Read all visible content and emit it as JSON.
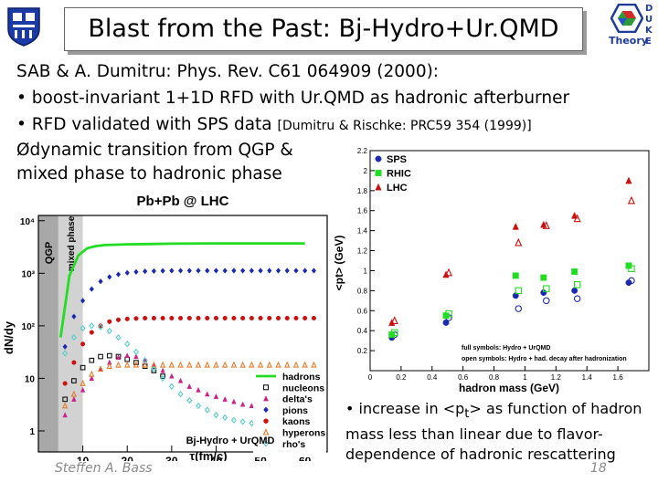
{
  "slide": {
    "title": "Blast from the Past: Bj-Hydro+Ur.QMD",
    "lines": [
      "SAB & A. Dumitru: Phys. Rev. C61 064909 (2000):",
      "• boost-invariant 1+1D RFD with Ur.QMD as hadronic afterburner",
      "• RFD validated with SPS data",
      "[Dumitru & Rischke: PRC59 354 (1999)]",
      "Ødynamic transition from QGP &",
      "mixed phase to hadronic phase"
    ],
    "logo_right": "Theory",
    "logo_letters": [
      "D",
      "U",
      "K",
      "E"
    ],
    "note": {
      "text_before": "• increase in <p",
      "text_sub": "t",
      "text_after": "> as function of hadron mass less than linear due to flavor-dependence of hadronic rescattering"
    },
    "author": "Steffen A. Bass",
    "page": "18"
  },
  "colors": {
    "hadrons": "#22dd22",
    "nucleons": "#111111",
    "deltas": "#cc2288",
    "pions": "#1a2ab0",
    "kaons": "#cc1111",
    "hyperons": "#e87a2a",
    "rhos": "#55cccc"
  },
  "chart_data": [
    {
      "type": "line",
      "title": "Pb+Pb @ LHC",
      "xlabel": "τ(fm/c)",
      "ylabel": "dN/dy",
      "xlim": [
        0,
        65
      ],
      "ylim_log10": [
        -0.4,
        4.1
      ],
      "x_ticks": [
        "10",
        "20",
        "30",
        "40",
        "50",
        "60"
      ],
      "y_ticks": [
        "1",
        "10",
        "10²",
        "10³",
        "10⁴"
      ],
      "phase_labels": [
        "QGP",
        "mixed phase"
      ],
      "phase_regions": [
        [
          0,
          4.5
        ],
        [
          4.5,
          10
        ]
      ],
      "legend_title": "Bj-Hydro + UrQMD",
      "series": [
        {
          "name": "hadrons",
          "style": "line",
          "x": [
            5,
            7,
            9,
            11,
            13,
            15,
            20,
            25,
            30,
            40,
            50,
            60
          ],
          "y": [
            60,
            900,
            2200,
            3000,
            3300,
            3450,
            3550,
            3600,
            3650,
            3700,
            3700,
            3700
          ]
        },
        {
          "name": "nucleons",
          "style": "square-open",
          "x": [
            6,
            8,
            10,
            12,
            14,
            16,
            18,
            20,
            22,
            24,
            26,
            28
          ],
          "y": [
            4,
            9,
            16,
            22,
            26,
            27,
            26,
            23,
            20,
            17,
            14,
            11
          ]
        },
        {
          "name": "delta's",
          "style": "triangle",
          "x": [
            6,
            8,
            10,
            12,
            14,
            16,
            18,
            20,
            22,
            24,
            26,
            28,
            30,
            32,
            34,
            36,
            38,
            40,
            42,
            44,
            46,
            48,
            50,
            52,
            54,
            56,
            58,
            60,
            62
          ],
          "y": [
            2,
            4,
            6,
            10,
            15,
            20,
            25,
            27,
            26,
            22,
            18,
            14,
            11,
            9,
            7,
            6,
            5,
            4.5,
            4,
            3.6,
            3.2,
            3,
            2.8,
            2.6,
            2.4,
            2.2,
            2.1,
            2.0,
            1.9
          ]
        },
        {
          "name": "pions",
          "style": "diamond",
          "x": [
            6,
            8,
            10,
            12,
            14,
            16,
            18,
            20,
            22,
            24,
            26,
            28,
            30,
            32,
            34,
            36,
            38,
            40,
            42,
            44,
            46,
            48,
            50,
            52,
            54,
            56,
            58,
            60,
            62
          ],
          "y": [
            40,
            150,
            300,
            500,
            700,
            850,
            950,
            1020,
            1060,
            1090,
            1100,
            1110,
            1120,
            1120,
            1120,
            1120,
            1120,
            1120,
            1120,
            1120,
            1120,
            1120,
            1120,
            1120,
            1120,
            1120,
            1120,
            1120,
            1120
          ]
        },
        {
          "name": "kaons",
          "style": "circle",
          "x": [
            6,
            8,
            10,
            12,
            14,
            16,
            18,
            20,
            22,
            24,
            26,
            28,
            30,
            32,
            34,
            36,
            38,
            40,
            42,
            44,
            46,
            48,
            50,
            52,
            54,
            56,
            58,
            60,
            62
          ],
          "y": [
            8,
            20,
            45,
            75,
            100,
            120,
            130,
            135,
            138,
            140,
            140,
            140,
            140,
            140,
            140,
            140,
            140,
            140,
            140,
            140,
            140,
            140,
            140,
            140,
            140,
            140,
            140,
            140,
            140
          ]
        },
        {
          "name": "hyperons",
          "style": "triangle-open",
          "x": [
            6,
            8,
            10,
            12,
            14,
            16,
            18,
            20,
            22,
            24,
            26,
            28,
            30,
            32,
            34,
            36,
            38,
            40,
            42,
            44,
            46,
            48,
            50,
            52,
            54,
            56,
            58,
            60,
            62
          ],
          "y": [
            3,
            5,
            8,
            12,
            15,
            17,
            18,
            18,
            18,
            18,
            18,
            18,
            18,
            18,
            18,
            18,
            18,
            18,
            18,
            18,
            18,
            18,
            18,
            18,
            18,
            18,
            18,
            18,
            18
          ]
        },
        {
          "name": "rho's",
          "style": "diamond-open",
          "x": [
            6,
            8,
            10,
            12,
            14,
            16,
            18,
            20,
            22,
            24,
            26,
            28,
            30,
            32,
            34,
            36,
            38,
            40,
            42,
            44,
            46,
            48,
            50,
            52,
            54,
            56,
            58,
            60,
            62
          ],
          "y": [
            30,
            60,
            90,
            100,
            95,
            80,
            60,
            45,
            32,
            22,
            15,
            10,
            7,
            5,
            3.8,
            3,
            2.5,
            2,
            1.8,
            1.6,
            1.5,
            1.4,
            1.3,
            1.25,
            1.2,
            1.15,
            1.1,
            1.05,
            1.0
          ]
        }
      ]
    },
    {
      "type": "scatter",
      "title": "",
      "xlabel": "hadron mass (GeV)",
      "ylabel": "<pt> (GeV)",
      "xlim": [
        0,
        1.8
      ],
      "ylim": [
        0,
        2.2
      ],
      "x_ticks": [
        "0",
        "0.2",
        "0.4",
        "0.6",
        "0.8",
        "1",
        "1.2",
        "1.4",
        "1.6"
      ],
      "y_ticks": [
        "0.2",
        "0.4",
        "0.6",
        "0.8",
        "1",
        "1.2",
        "1.4",
        "1.6",
        "1.8",
        "2",
        "2.2"
      ],
      "notes": [
        "full symbols: Hydro + UrQMD",
        "open symbols: Hydro + had. decay after hadronization"
      ],
      "series": [
        {
          "name": "SPS",
          "style": "circle",
          "full": {
            "x": [
              0.14,
              0.49,
              0.94,
              1.12,
              1.32,
              1.67
            ],
            "y": [
              0.33,
              0.48,
              0.75,
              0.78,
              0.8,
              0.88
            ]
          },
          "open": {
            "x": [
              0.14,
              0.49,
              0.94,
              1.12,
              1.32,
              1.67
            ],
            "y": [
              0.36,
              0.53,
              0.62,
              0.7,
              0.72,
              0.9
            ]
          }
        },
        {
          "name": "RHIC",
          "style": "square",
          "full": {
            "x": [
              0.14,
              0.49,
              0.94,
              1.12,
              1.32,
              1.67
            ],
            "y": [
              0.36,
              0.55,
              0.95,
              0.93,
              0.99,
              1.05
            ]
          },
          "open": {
            "x": [
              0.14,
              0.49,
              0.94,
              1.12,
              1.32,
              1.67
            ],
            "y": [
              0.38,
              0.57,
              0.8,
              0.82,
              0.86,
              1.02
            ]
          }
        },
        {
          "name": "LHC",
          "style": "triangle",
          "full": {
            "x": [
              0.14,
              0.49,
              0.94,
              1.12,
              1.32,
              1.67
            ],
            "y": [
              0.48,
              0.96,
              1.44,
              1.46,
              1.55,
              1.9
            ]
          },
          "open": {
            "x": [
              0.14,
              0.49,
              0.94,
              1.12,
              1.32,
              1.67
            ],
            "y": [
              0.5,
              0.98,
              1.28,
              1.45,
              1.52,
              1.7
            ]
          }
        }
      ]
    }
  ]
}
